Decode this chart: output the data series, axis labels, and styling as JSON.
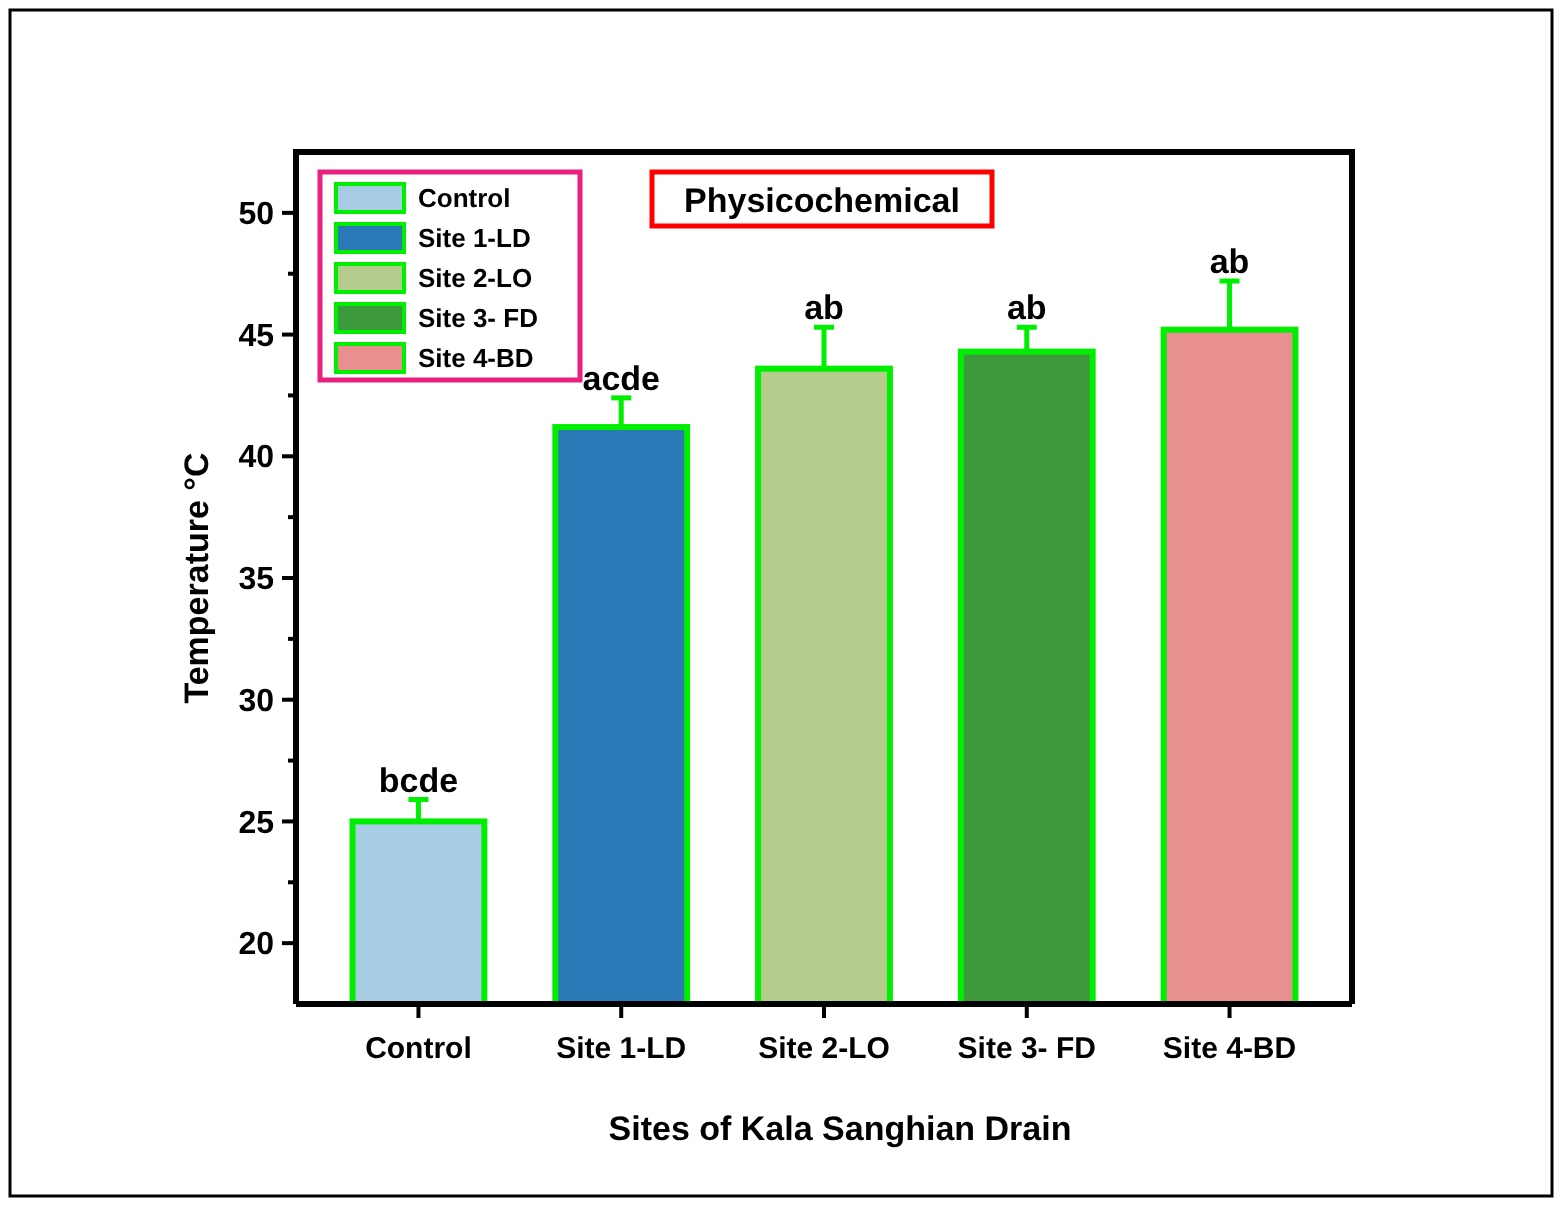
{
  "chart_data": {
    "type": "bar",
    "title": "Physicochemical",
    "xlabel": "Sites of Kala Sanghian Drain",
    "ylabel": "Temperature °C",
    "categories": [
      "Control",
      "Site 1-LD",
      "Site 2-LO",
      "Site 3- FD",
      "Site 4-BD"
    ],
    "series": [
      {
        "name": "Control",
        "color": "#a8cce4",
        "values": [
          25.0,
          null,
          null,
          null,
          null
        ],
        "errors": [
          0.9,
          null,
          null,
          null,
          null
        ]
      },
      {
        "name": "Site 1-LD",
        "color": "#2a7ab8",
        "values": [
          null,
          41.2,
          null,
          null,
          null
        ],
        "errors": [
          null,
          1.2,
          null,
          null,
          null
        ]
      },
      {
        "name": "Site 2-LO",
        "color": "#b4cc8c",
        "values": [
          null,
          null,
          43.6,
          null,
          null
        ],
        "errors": [
          null,
          null,
          1.7,
          null,
          null
        ]
      },
      {
        "name": "Site 3- FD",
        "color": "#3c9a3c",
        "values": [
          null,
          null,
          null,
          44.3,
          null
        ],
        "errors": [
          null,
          null,
          null,
          1.0,
          null
        ]
      },
      {
        "name": "Site 4-BD",
        "color": "#e89090",
        "values": [
          null,
          null,
          null,
          null,
          45.2
        ],
        "errors": [
          null,
          null,
          null,
          null,
          2.0
        ]
      }
    ],
    "ylim": [
      17.5,
      52.5
    ],
    "yticks": [
      20,
      {
        "value": 22.5,
        "label": null
      },
      25,
      {
        "value": 27.5,
        "label": null
      },
      30,
      {
        "value": 32.5,
        "label": null
      },
      35,
      {
        "value": 37.5,
        "label": null
      },
      40,
      {
        "value": 42.5,
        "label": null
      },
      45,
      {
        "value": 47.5,
        "label": null
      },
      50
    ],
    "annotations": [
      {
        "text": "bcde",
        "x": "Control",
        "y": 25.9
      },
      {
        "text": "acde",
        "x": "Site 1-LD",
        "y": 42.4
      },
      {
        "text": "ab",
        "x": "Site 2-LO",
        "y": 45.3
      },
      {
        "text": "ab",
        "x": "Site 3- FD",
        "y": 45.3
      },
      {
        "text": "ab",
        "x": "Site 4-BD",
        "y": 47.2
      }
    ],
    "legend": "top left"
  }
}
